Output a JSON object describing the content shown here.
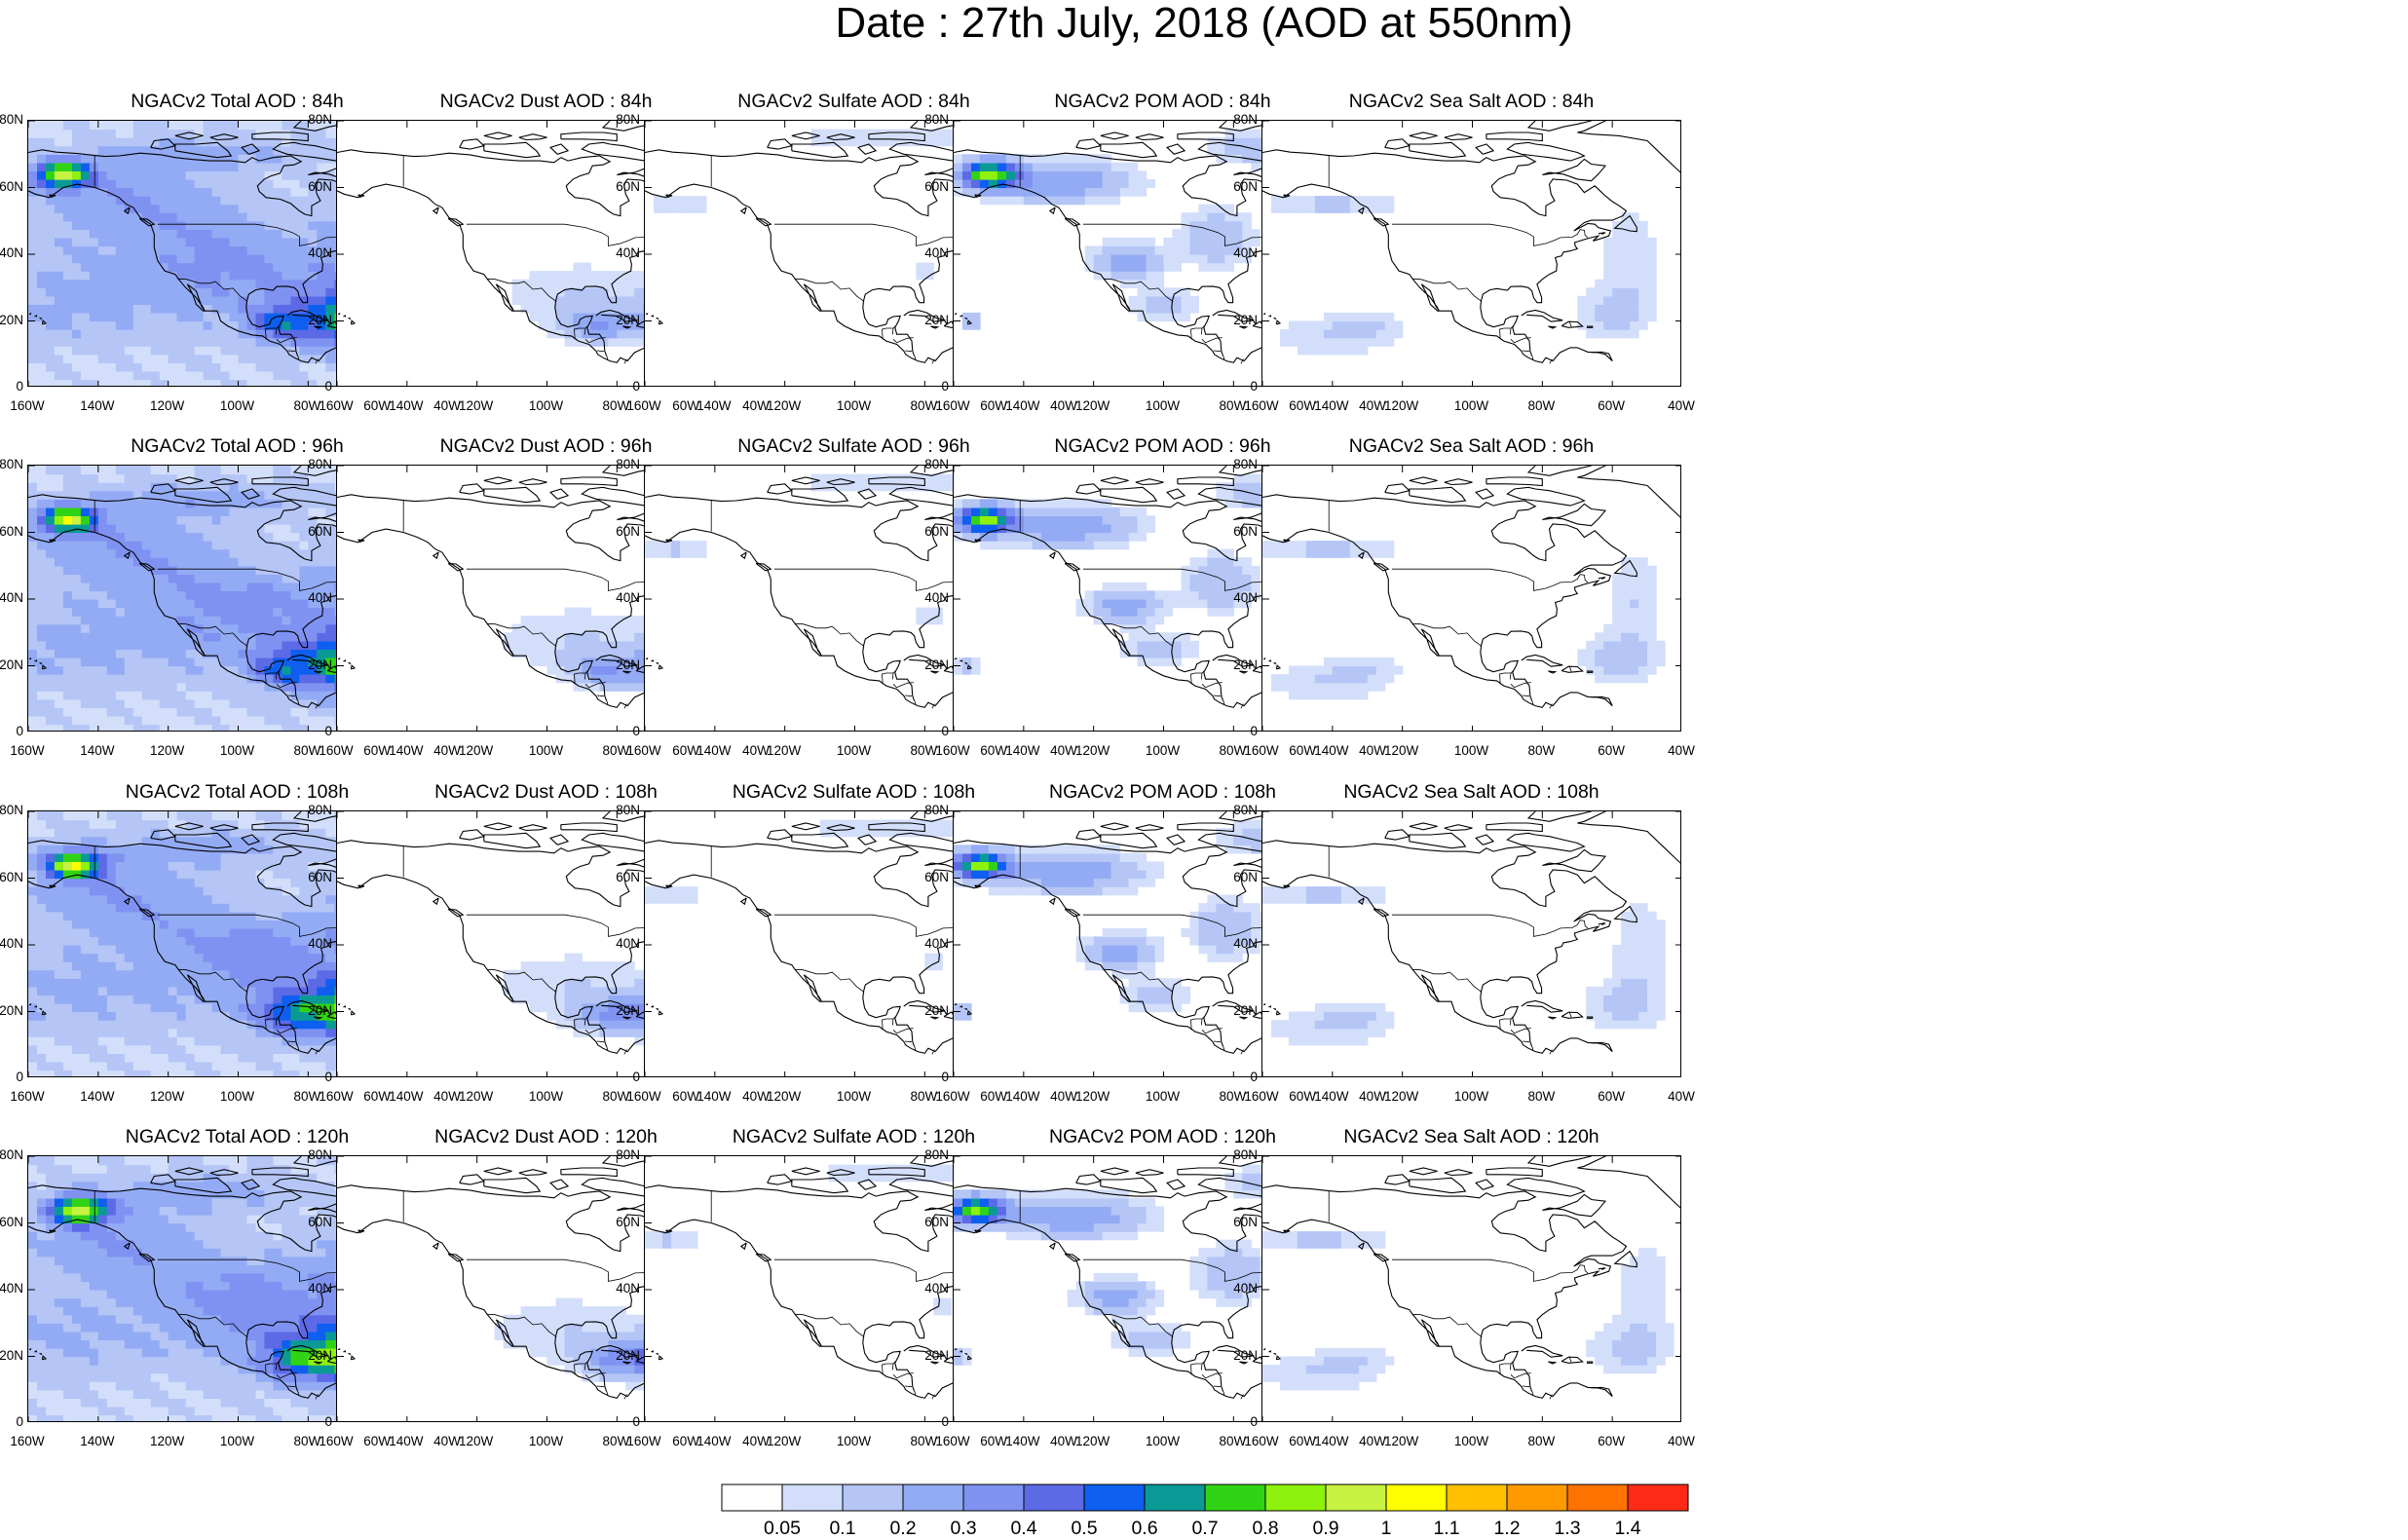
{
  "title": "Date : 27th July, 2018 (AOD at 550nm)",
  "panels": [
    [
      {
        "title": "NGACv2 Total AOD : 84h",
        "species": "total"
      },
      {
        "title": "NGACv2 Dust AOD : 84h",
        "species": "dust"
      },
      {
        "title": "NGACv2 Sulfate AOD : 84h",
        "species": "sulfate"
      },
      {
        "title": "NGACv2 POM AOD : 84h",
        "species": "pom"
      },
      {
        "title": "NGACv2 Sea Salt AOD : 84h",
        "species": "seasalt"
      }
    ],
    [
      {
        "title": "NGACv2 Total AOD : 96h",
        "species": "total"
      },
      {
        "title": "NGACv2 Dust AOD : 96h",
        "species": "dust"
      },
      {
        "title": "NGACv2 Sulfate AOD : 96h",
        "species": "sulfate"
      },
      {
        "title": "NGACv2 POM AOD : 96h",
        "species": "pom"
      },
      {
        "title": "NGACv2 Sea Salt AOD : 96h",
        "species": "seasalt"
      }
    ],
    [
      {
        "title": "NGACv2 Total AOD : 108h",
        "species": "total"
      },
      {
        "title": "NGACv2 Dust AOD : 108h",
        "species": "dust"
      },
      {
        "title": "NGACv2 Sulfate AOD : 108h",
        "species": "sulfate"
      },
      {
        "title": "NGACv2 POM AOD : 108h",
        "species": "pom"
      },
      {
        "title": "NGACv2 Sea Salt AOD : 108h",
        "species": "seasalt"
      }
    ],
    [
      {
        "title": "NGACv2 Total AOD : 120h",
        "species": "total"
      },
      {
        "title": "NGACv2 Dust AOD : 120h",
        "species": "dust"
      },
      {
        "title": "NGACv2 Sulfate AOD : 120h",
        "species": "sulfate"
      },
      {
        "title": "NGACv2 POM AOD : 120h",
        "species": "pom"
      },
      {
        "title": "NGACv2 Sea Salt  AOD : 120h",
        "species": "seasalt"
      }
    ]
  ],
  "lat_ticks": [
    "0",
    "20N",
    "40N",
    "60N",
    "80N"
  ],
  "lon_ticks": [
    "160W",
    "140W",
    "120W",
    "100W",
    "80W",
    "60W",
    "40W"
  ],
  "colorbar": {
    "colors": [
      "#ffffff",
      "#d3defb",
      "#b4c5f6",
      "#93abf4",
      "#7f92f2",
      "#5c6ae6",
      "#0e5ff0",
      "#0a9a96",
      "#31d415",
      "#8ef20e",
      "#c8f241",
      "#fefe00",
      "#fec000",
      "#fe9a00",
      "#fe7200",
      "#fe2a18"
    ],
    "labels": [
      "0.05",
      "0.1",
      "0.2",
      "0.3",
      "0.4",
      "0.5",
      "0.6",
      "0.7",
      "0.8",
      "0.9",
      "1",
      "1.1",
      "1.2",
      "1.3",
      "1.4"
    ]
  }
}
